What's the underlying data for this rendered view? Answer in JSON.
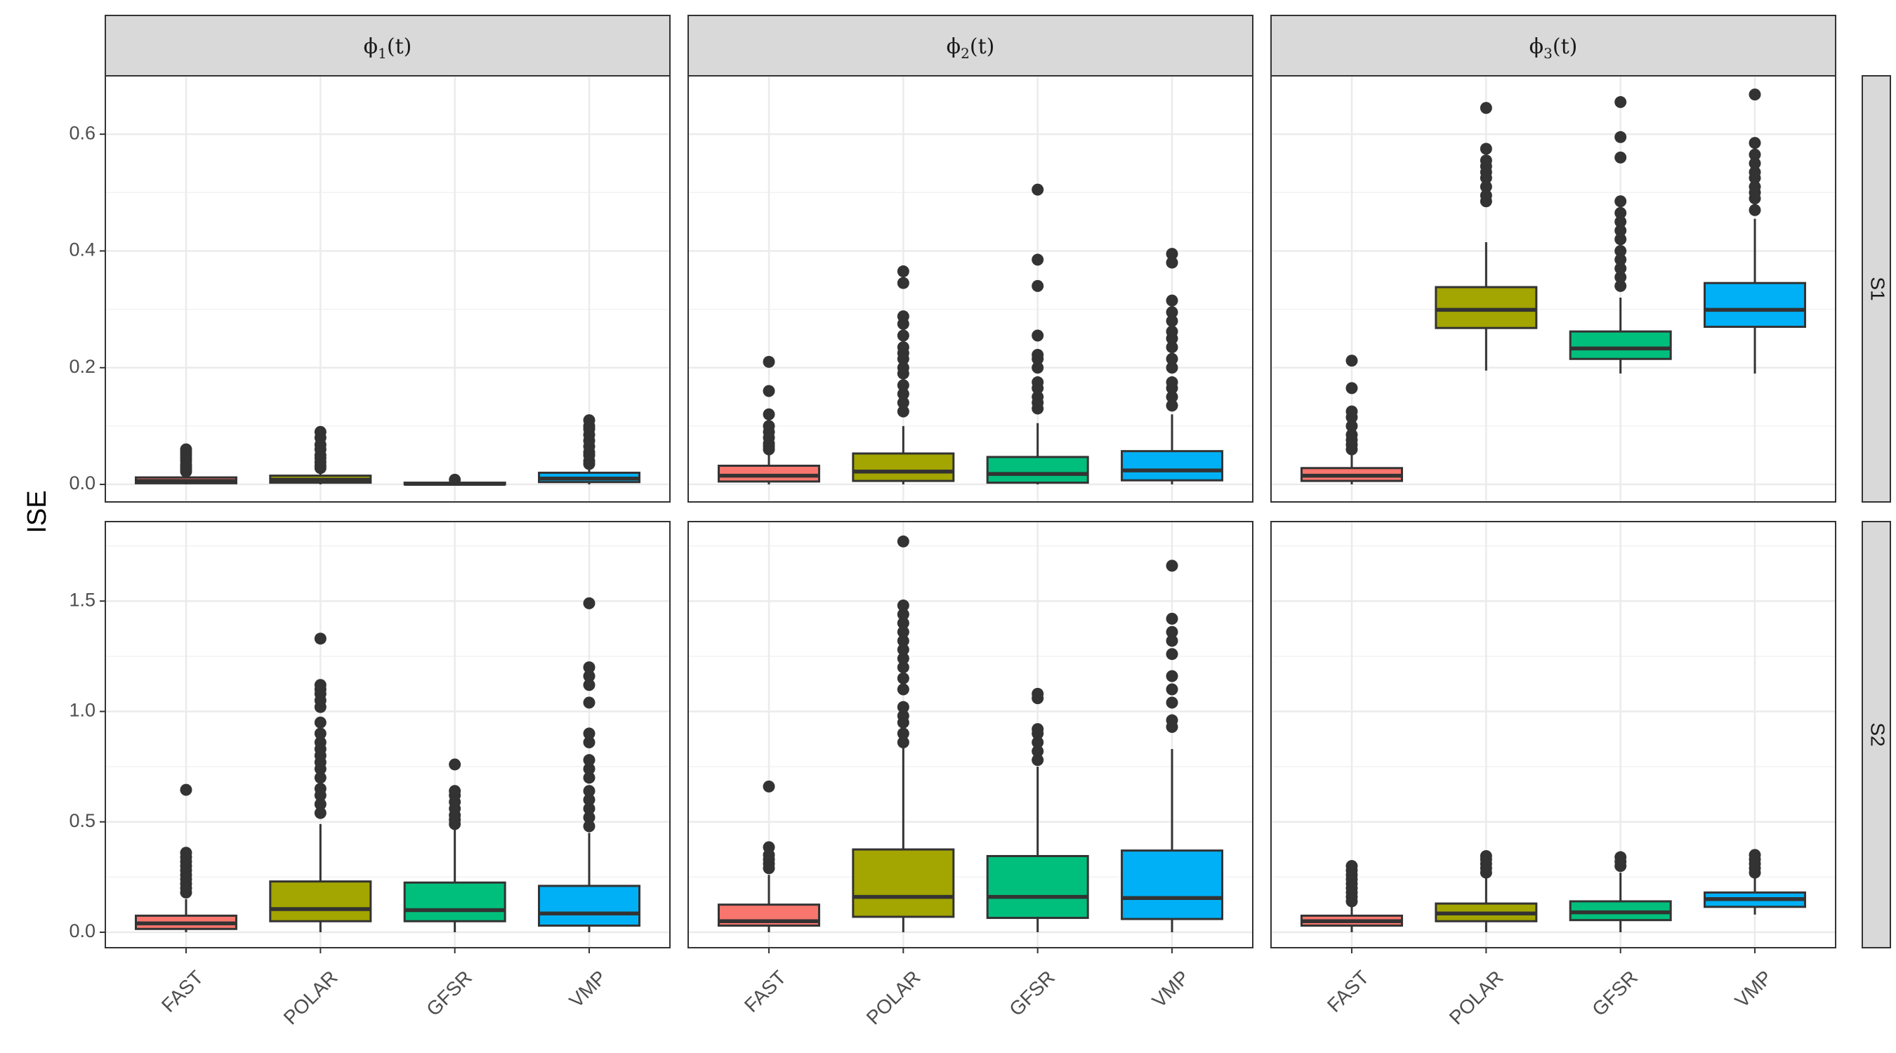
{
  "chart_data": {
    "type": "box",
    "ylabel": "ISE",
    "xlabel": "",
    "categories": [
      "FAST",
      "POLAR",
      "GFSR",
      "VMP"
    ],
    "colors": {
      "FAST": "#F8766D",
      "POLAR": "#A3A500",
      "GFSR": "#00BF7D",
      "VMP": "#00B0F6"
    },
    "columns": [
      {
        "label": "ϕ",
        "sub": "1",
        "suffix": "(t)"
      },
      {
        "label": "ϕ",
        "sub": "2",
        "suffix": "(t)"
      },
      {
        "label": "ϕ",
        "sub": "3",
        "suffix": "(t)"
      }
    ],
    "rows": [
      {
        "label": "S1",
        "ylim": [
          -0.03,
          0.7
        ],
        "yticks": [
          0.0,
          0.2,
          0.4,
          0.6
        ],
        "ytick_labels": [
          "0.0",
          "0.2",
          "0.4",
          "0.6"
        ],
        "panels": [
          [
            {
              "q1": 0.002,
              "median": 0.006,
              "q3": 0.012,
              "whisker_low": 0.0,
              "whisker_high": 0.018,
              "outliers": [
                0.022,
                0.026,
                0.03,
                0.034,
                0.04,
                0.045,
                0.05,
                0.055,
                0.06
              ]
            },
            {
              "q1": 0.003,
              "median": 0.008,
              "q3": 0.015,
              "whisker_low": 0.0,
              "whisker_high": 0.024,
              "outliers": [
                0.028,
                0.032,
                0.038,
                0.045,
                0.05,
                0.06,
                0.068,
                0.08,
                0.09
              ]
            },
            {
              "q1": 0.0,
              "median": 0.001,
              "q3": 0.003,
              "whisker_low": 0.0,
              "whisker_high": 0.005,
              "outliers": [
                0.008
              ]
            },
            {
              "q1": 0.004,
              "median": 0.01,
              "q3": 0.02,
              "whisker_low": 0.0,
              "whisker_high": 0.03,
              "outliers": [
                0.035,
                0.04,
                0.05,
                0.055,
                0.065,
                0.075,
                0.085,
                0.095,
                0.1,
                0.11
              ]
            }
          ],
          [
            {
              "q1": 0.005,
              "median": 0.015,
              "q3": 0.032,
              "whisker_low": 0.0,
              "whisker_high": 0.055,
              "outliers": [
                0.06,
                0.065,
                0.07,
                0.08,
                0.09,
                0.1,
                0.12,
                0.16,
                0.21
              ]
            },
            {
              "q1": 0.006,
              "median": 0.022,
              "q3": 0.053,
              "whisker_low": 0.0,
              "whisker_high": 0.1,
              "outliers": [
                0.125,
                0.14,
                0.155,
                0.17,
                0.19,
                0.2,
                0.215,
                0.225,
                0.235,
                0.255,
                0.275,
                0.288,
                0.345,
                0.365
              ]
            },
            {
              "q1": 0.003,
              "median": 0.018,
              "q3": 0.047,
              "whisker_low": 0.0,
              "whisker_high": 0.105,
              "outliers": [
                0.13,
                0.14,
                0.15,
                0.165,
                0.175,
                0.2,
                0.215,
                0.222,
                0.255,
                0.34,
                0.385,
                0.505
              ]
            },
            {
              "q1": 0.007,
              "median": 0.024,
              "q3": 0.057,
              "whisker_low": 0.0,
              "whisker_high": 0.12,
              "outliers": [
                0.135,
                0.15,
                0.165,
                0.175,
                0.2,
                0.215,
                0.235,
                0.25,
                0.262,
                0.28,
                0.295,
                0.315,
                0.38,
                0.395
              ]
            }
          ],
          [
            {
              "q1": 0.006,
              "median": 0.015,
              "q3": 0.028,
              "whisker_low": 0.0,
              "whisker_high": 0.05,
              "outliers": [
                0.06,
                0.068,
                0.076,
                0.085,
                0.1,
                0.115,
                0.125,
                0.165,
                0.212
              ]
            },
            {
              "q1": 0.268,
              "median": 0.299,
              "q3": 0.338,
              "whisker_low": 0.195,
              "whisker_high": 0.415,
              "outliers": [
                0.485,
                0.495,
                0.51,
                0.525,
                0.535,
                0.545,
                0.555,
                0.575,
                0.645
              ]
            },
            {
              "q1": 0.215,
              "median": 0.233,
              "q3": 0.262,
              "whisker_low": 0.19,
              "whisker_high": 0.32,
              "outliers": [
                0.34,
                0.355,
                0.37,
                0.385,
                0.4,
                0.42,
                0.435,
                0.45,
                0.465,
                0.485,
                0.56,
                0.595,
                0.655
              ]
            },
            {
              "q1": 0.27,
              "median": 0.299,
              "q3": 0.345,
              "whisker_low": 0.19,
              "whisker_high": 0.455,
              "outliers": [
                0.47,
                0.49,
                0.5,
                0.51,
                0.525,
                0.535,
                0.55,
                0.565,
                0.585,
                0.668
              ]
            }
          ]
        ]
      },
      {
        "label": "S2",
        "ylim": [
          -0.07,
          1.86
        ],
        "yticks": [
          0.0,
          0.5,
          1.0,
          1.5
        ],
        "ytick_labels": [
          "0.0",
          "0.5",
          "1.0",
          "1.5"
        ],
        "panels": [
          [
            {
              "q1": 0.015,
              "median": 0.04,
              "q3": 0.075,
              "whisker_low": 0.0,
              "whisker_high": 0.15,
              "outliers": [
                0.18,
                0.2,
                0.22,
                0.24,
                0.26,
                0.28,
                0.3,
                0.32,
                0.34,
                0.36,
                0.645
              ]
            },
            {
              "q1": 0.05,
              "median": 0.105,
              "q3": 0.23,
              "whisker_low": 0.0,
              "whisker_high": 0.49,
              "outliers": [
                0.54,
                0.58,
                0.62,
                0.65,
                0.7,
                0.74,
                0.77,
                0.8,
                0.83,
                0.86,
                0.9,
                0.95,
                1.02,
                1.05,
                1.08,
                1.1,
                1.12,
                1.33
              ]
            },
            {
              "q1": 0.05,
              "median": 0.1,
              "q3": 0.225,
              "whisker_low": 0.0,
              "whisker_high": 0.47,
              "outliers": [
                0.49,
                0.51,
                0.53,
                0.56,
                0.59,
                0.62,
                0.64,
                0.76
              ]
            },
            {
              "q1": 0.03,
              "median": 0.085,
              "q3": 0.21,
              "whisker_low": 0.0,
              "whisker_high": 0.45,
              "outliers": [
                0.48,
                0.52,
                0.56,
                0.6,
                0.64,
                0.7,
                0.74,
                0.78,
                0.86,
                0.9,
                1.04,
                1.12,
                1.16,
                1.2,
                1.49
              ]
            }
          ],
          [
            {
              "q1": 0.03,
              "median": 0.05,
              "q3": 0.125,
              "whisker_low": 0.0,
              "whisker_high": 0.26,
              "outliers": [
                0.29,
                0.31,
                0.33,
                0.35,
                0.385,
                0.66
              ]
            },
            {
              "q1": 0.07,
              "median": 0.16,
              "q3": 0.375,
              "whisker_low": 0.0,
              "whisker_high": 0.84,
              "outliers": [
                0.86,
                0.9,
                0.95,
                0.98,
                1.02,
                1.1,
                1.15,
                1.2,
                1.24,
                1.28,
                1.32,
                1.36,
                1.4,
                1.44,
                1.48,
                1.77
              ]
            },
            {
              "q1": 0.065,
              "median": 0.16,
              "q3": 0.345,
              "whisker_low": 0.0,
              "whisker_high": 0.75,
              "outliers": [
                0.78,
                0.82,
                0.86,
                0.9,
                0.92,
                1.06,
                1.08
              ]
            },
            {
              "q1": 0.06,
              "median": 0.155,
              "q3": 0.37,
              "whisker_low": 0.0,
              "whisker_high": 0.83,
              "outliers": [
                0.93,
                0.96,
                1.04,
                1.1,
                1.16,
                1.26,
                1.32,
                1.36,
                1.42,
                1.66
              ]
            }
          ],
          [
            {
              "q1": 0.03,
              "median": 0.05,
              "q3": 0.075,
              "whisker_low": 0.0,
              "whisker_high": 0.13,
              "outliers": [
                0.14,
                0.16,
                0.18,
                0.2,
                0.22,
                0.24,
                0.26,
                0.28,
                0.3
              ]
            },
            {
              "q1": 0.05,
              "median": 0.085,
              "q3": 0.13,
              "whisker_low": 0.0,
              "whisker_high": 0.25,
              "outliers": [
                0.27,
                0.29,
                0.31,
                0.33,
                0.345
              ]
            },
            {
              "q1": 0.055,
              "median": 0.09,
              "q3": 0.14,
              "whisker_low": 0.0,
              "whisker_high": 0.27,
              "outliers": [
                0.3,
                0.32,
                0.34
              ]
            },
            {
              "q1": 0.115,
              "median": 0.15,
              "q3": 0.18,
              "whisker_low": 0.08,
              "whisker_high": 0.25,
              "outliers": [
                0.27,
                0.29,
                0.31,
                0.33,
                0.35
              ]
            }
          ]
        ]
      }
    ]
  }
}
